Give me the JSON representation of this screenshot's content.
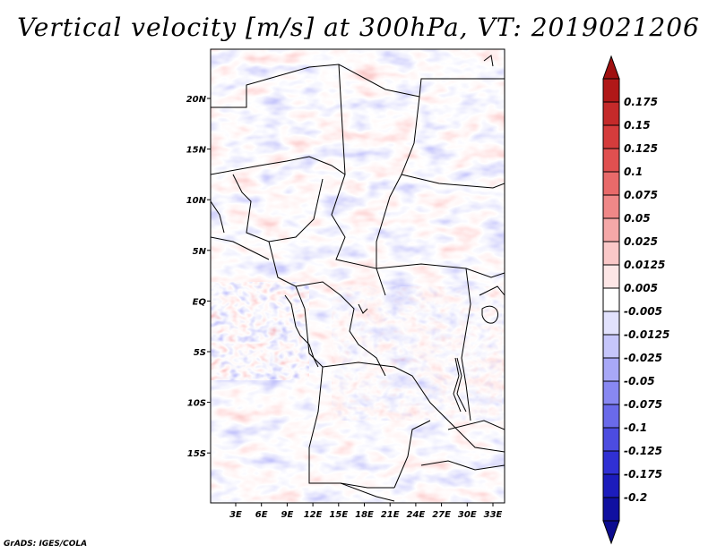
{
  "title": "Vertical velocity [m/s] at 300hPa, VT: 2019021206",
  "footer": "GrADS: IGES/COLA",
  "map": {
    "lon_labels": [
      "3E",
      "6E",
      "9E",
      "12E",
      "15E",
      "18E",
      "21E",
      "24E",
      "27E",
      "30E",
      "33E"
    ],
    "lat_labels": [
      "20N",
      "15N",
      "10N",
      "5N",
      "EQ",
      "5S",
      "10S",
      "15S"
    ],
    "lon_range": [
      "0.5E",
      "34.5E"
    ],
    "lat_range": [
      "19.5S",
      "25N"
    ]
  },
  "colorbar": {
    "labels": [
      "0.175",
      "0.15",
      "0.125",
      "0.1",
      "0.075",
      "0.05",
      "0.025",
      "0.0125",
      "0.005",
      "-0.005",
      "-0.0125",
      "-0.025",
      "-0.05",
      "-0.075",
      "-0.1",
      "-0.125",
      "-0.175",
      "-0.2"
    ],
    "colors": [
      "#b01818",
      "#c42a2a",
      "#d53c3c",
      "#e05050",
      "#e86a6a",
      "#ef8888",
      "#f5a8a8",
      "#fac8c8",
      "#fde6e6",
      "#ffffff",
      "#e2e2fd",
      "#c6c6fb",
      "#a8a8f7",
      "#8888f2",
      "#6a6aea",
      "#4c4ce0",
      "#3030d4",
      "#1c1cbc",
      "#1010a0"
    ],
    "end_colors": {
      "top": "#a01010",
      "bottom": "#0c0c90"
    }
  }
}
